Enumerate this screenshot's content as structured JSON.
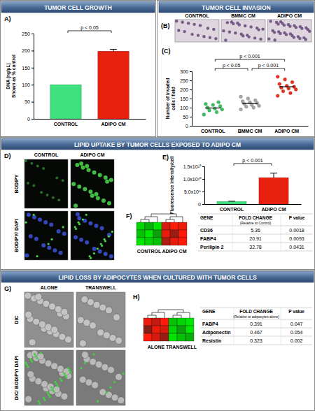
{
  "sections": [
    "TUMOR CELL GROWTH",
    "TUMOR CELL INVASION",
    "LIPID UPTAKE BY TUMOR CELLS EXPOSED TO ADIPO CM",
    "LIPID LOSS BY ADIPOCYTES WHEN CULTURED WITH TUMOR CELLS"
  ],
  "chart_data": [
    {
      "type": "bar",
      "title": "A)",
      "ylabel": [
        "DNA (ng/µL)",
        "Shown as % control"
      ],
      "categories": [
        "CONTROL",
        "ADIPO CM"
      ],
      "values": [
        100,
        198
      ],
      "errors": [
        null,
        6
      ],
      "colors": [
        "#3fe07e",
        "#e8200e"
      ],
      "ylim": [
        0,
        250
      ],
      "yticks": [
        0,
        50,
        100,
        150,
        200,
        250
      ],
      "comparisons": [
        {
          "pair": [
            0,
            1
          ],
          "label": "p < 0.05"
        }
      ]
    },
    {
      "type": "scatter",
      "title": "(C)",
      "ylabel": [
        "Number of invaded",
        "cells / field"
      ],
      "categories": [
        "CONTROL",
        "BMMC CM",
        "ADIPO CM"
      ],
      "values": [
        [
          62,
          75,
          85,
          90,
          95,
          100,
          108,
          115,
          120,
          130
        ],
        [
          90,
          100,
          105,
          110,
          115,
          120,
          125,
          130,
          135,
          140,
          150,
          160
        ],
        [
          165,
          180,
          190,
          200,
          205,
          210,
          215,
          220,
          230,
          240,
          255,
          270
        ]
      ],
      "means": [
        98,
        123,
        215
      ],
      "colors": [
        "#3cc060",
        "#a6a6a6",
        "#e8321e"
      ],
      "marker": "circle",
      "ylim": [
        0,
        300
      ],
      "yticks": [
        0,
        50,
        100,
        150,
        200,
        250,
        300
      ],
      "comparisons": [
        {
          "pair": [
            0,
            2
          ],
          "label": "p < 0.001"
        },
        {
          "pair": [
            0,
            1
          ],
          "label": "p < 0.05"
        },
        {
          "pair": [
            1,
            2
          ],
          "label": "p < 0.001"
        }
      ]
    },
    {
      "type": "bar",
      "title": "E)",
      "ylabel": "Fluorescence intensity/cell",
      "categories": [
        "CONTROL",
        "ADIPO CM"
      ],
      "values": [
        1000000000,
        10500000000
      ],
      "errors": [
        150000000,
        1800000000
      ],
      "colors": [
        "#3fe07e",
        "#e8200e"
      ],
      "ylim": [
        0,
        15000000000
      ],
      "yticks": [
        0,
        {
          "value": 5000000000,
          "label": "5.0x10⁹"
        },
        {
          "value": 10000000000,
          "label": "1.0x10¹⁰"
        },
        {
          "value": 15000000000,
          "label": "1.5x10¹⁰"
        }
      ],
      "comparisons": [
        {
          "pair": [
            0,
            1
          ],
          "label": "p < 0.001"
        }
      ]
    },
    {
      "type": "heatmap",
      "title": "F)",
      "column_groups": [
        "CONTROL",
        "CONTROL",
        "CONTROL",
        "ADIPO CM",
        "ADIPO CM",
        "ADIPO CM"
      ],
      "cells": [
        [
          -1.0,
          -0.8,
          -1.1,
          0.9,
          1.1,
          1.0
        ],
        [
          -0.9,
          -1.1,
          -0.7,
          1.0,
          0.6,
          1.1
        ],
        [
          -1.1,
          -1.0,
          -0.9,
          0.7,
          1.0,
          1.1
        ]
      ],
      "table": {
        "header": [
          "GENE",
          "FOLD CHANGE",
          "P value"
        ],
        "note": "(Relative to Control)",
        "rows": [
          [
            "CD36",
            5.36,
            0.0018
          ],
          [
            "FABP4",
            20.91,
            0.0093
          ],
          [
            "Perilipin 2",
            32.78,
            0.0431
          ]
        ]
      }
    },
    {
      "type": "heatmap",
      "title": "H)",
      "column_groups": [
        "ALONE",
        "ALONE",
        "ALONE",
        "TRANSWELL",
        "TRANSWELL",
        "TRANSWELL"
      ],
      "cells": [
        [
          1.0,
          0.8,
          1.1,
          -0.9,
          -1.0,
          -1.1
        ],
        [
          0.5,
          1.0,
          0.9,
          -1.0,
          -0.7,
          -1.1
        ],
        [
          1.1,
          0.9,
          0.6,
          -1.1,
          -0.9,
          -0.8
        ]
      ],
      "table": {
        "header": [
          "GENE",
          "FOLD CHANGE",
          "P value"
        ],
        "note": "(Relative to adipocytes alone)",
        "rows": [
          [
            "FABP4",
            0.391,
            0.047
          ],
          [
            "Adiponectin",
            0.467,
            0.054
          ],
          [
            "Resistin",
            0.323,
            0.002
          ]
        ]
      }
    }
  ],
  "images": [
    {
      "title": "(B)",
      "columns": [
        "CONTROL",
        "BMMC CM",
        "ADIPO CM"
      ]
    },
    {
      "title": "D)",
      "columns": [
        "CONTROL",
        "ADIPO CM"
      ],
      "rows": [
        "BODIPY",
        "BODIPY/ DAPI"
      ]
    },
    {
      "title": "G)",
      "columns": [
        "ALONE",
        "TRANSWELL"
      ],
      "rows": [
        "DIC",
        "DIC/ BODIPY/ DAPI"
      ]
    }
  ]
}
